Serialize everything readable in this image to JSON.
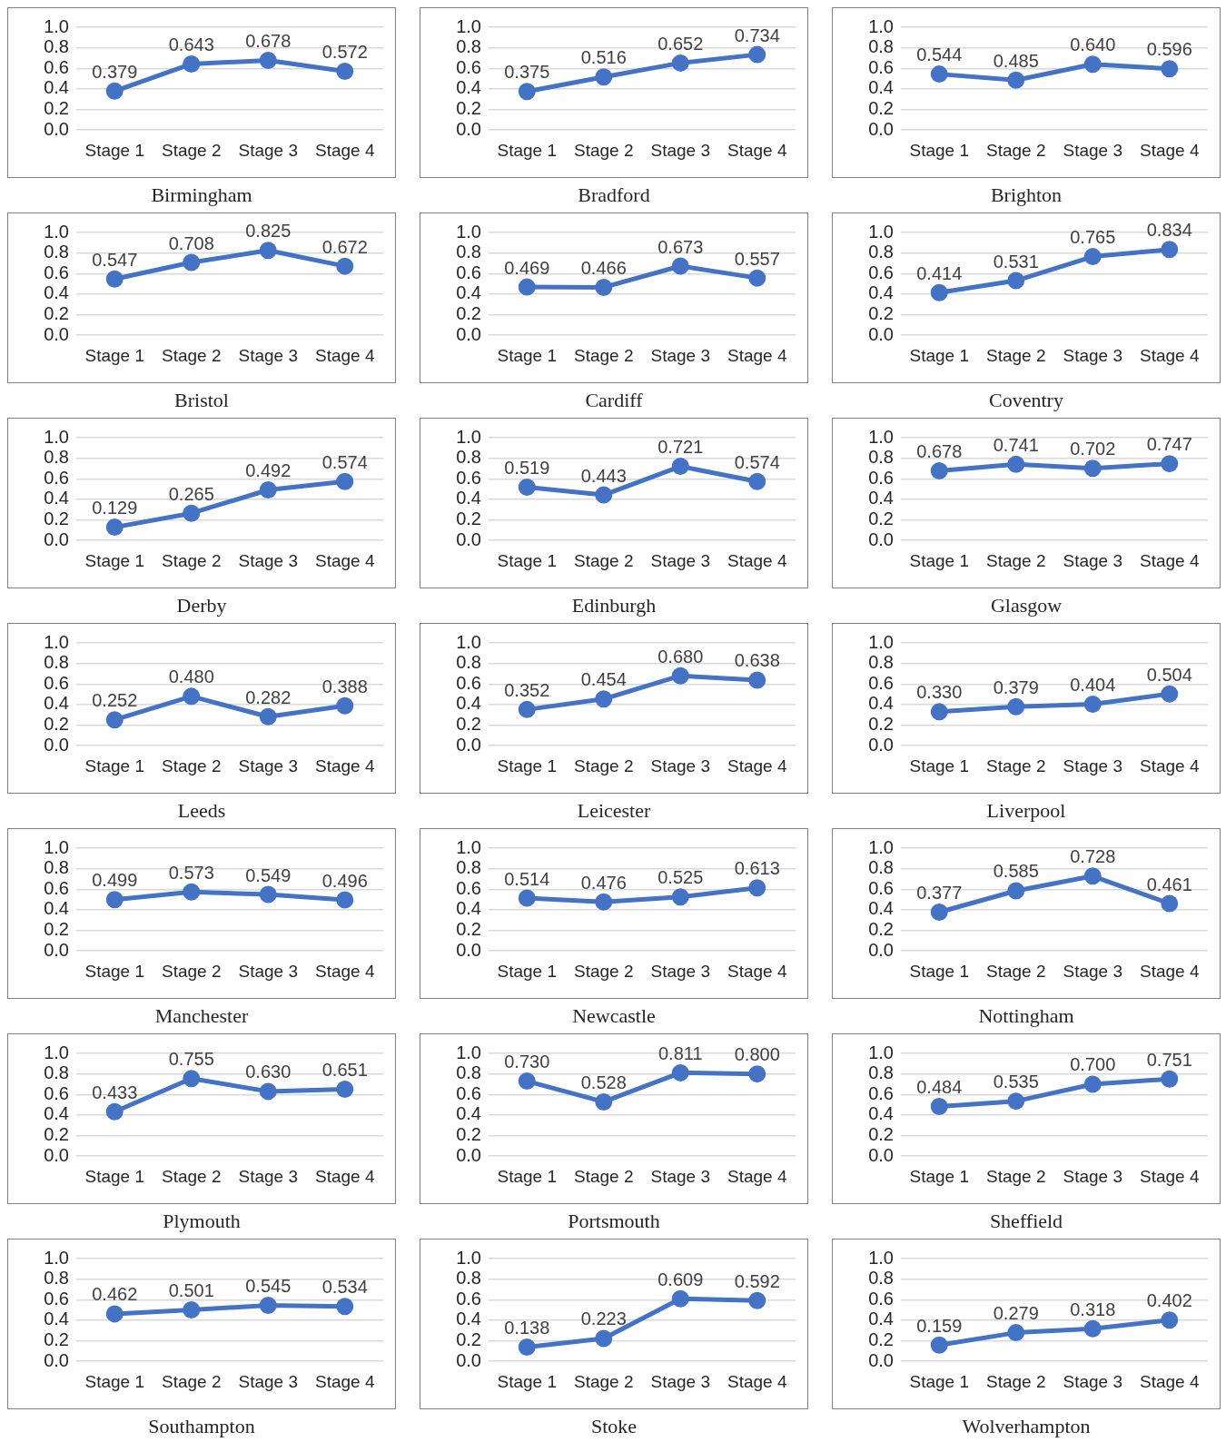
{
  "chart_data": [
    {
      "type": "line",
      "title": "Birmingham",
      "categories": [
        "Stage 1",
        "Stage 2",
        "Stage 3",
        "Stage 4"
      ],
      "values": [
        0.379,
        0.643,
        0.678,
        0.572
      ],
      "value_labels": [
        "0.379",
        "0.643",
        "0.678",
        "0.572"
      ],
      "color": "#4472c4",
      "marker": "circle",
      "grid": "y",
      "ylim": [
        0,
        1
      ],
      "yticks": [
        {
          "value": 0,
          "label": "0.0"
        },
        {
          "value": 0.2,
          "label": "0.2"
        },
        {
          "value": 0.4,
          "label": "0.4"
        },
        {
          "value": 0.6,
          "label": "0.6"
        },
        {
          "value": 0.8,
          "label": "0.8"
        },
        {
          "value": 1,
          "label": "1.0"
        }
      ]
    },
    {
      "type": "line",
      "title": "Bradford",
      "categories": [
        "Stage 1",
        "Stage 2",
        "Stage 3",
        "Stage 4"
      ],
      "values": [
        0.375,
        0.516,
        0.652,
        0.734
      ],
      "value_labels": [
        "0.375",
        "0.516",
        "0.652",
        "0.734"
      ],
      "color": "#4472c4",
      "marker": "circle",
      "grid": "y",
      "ylim": [
        0,
        1
      ],
      "yticks": [
        {
          "value": 0,
          "label": "0.0"
        },
        {
          "value": 0.2,
          "label": "0.2"
        },
        {
          "value": 0.4,
          "label": "0.4"
        },
        {
          "value": 0.6,
          "label": "0.6"
        },
        {
          "value": 0.8,
          "label": "0.8"
        },
        {
          "value": 1,
          "label": "1.0"
        }
      ]
    },
    {
      "type": "line",
      "title": "Brighton",
      "categories": [
        "Stage 1",
        "Stage 2",
        "Stage 3",
        "Stage 4"
      ],
      "values": [
        0.544,
        0.485,
        0.64,
        0.596
      ],
      "value_labels": [
        "0.544",
        "0.485",
        "0.640",
        "0.596"
      ],
      "color": "#4472c4",
      "marker": "circle",
      "grid": "y",
      "ylim": [
        0,
        1
      ],
      "yticks": [
        {
          "value": 0,
          "label": "0.0"
        },
        {
          "value": 0.2,
          "label": "0.2"
        },
        {
          "value": 0.4,
          "label": "0.4"
        },
        {
          "value": 0.6,
          "label": "0.6"
        },
        {
          "value": 0.8,
          "label": "0.8"
        },
        {
          "value": 1,
          "label": "1.0"
        }
      ]
    },
    {
      "type": "line",
      "title": "Bristol",
      "categories": [
        "Stage 1",
        "Stage 2",
        "Stage 3",
        "Stage 4"
      ],
      "values": [
        0.547,
        0.708,
        0.825,
        0.672
      ],
      "value_labels": [
        "0.547",
        "0.708",
        "0.825",
        "0.672"
      ],
      "color": "#4472c4",
      "marker": "circle",
      "grid": "y",
      "ylim": [
        0,
        1
      ],
      "yticks": [
        {
          "value": 0,
          "label": "0.0"
        },
        {
          "value": 0.2,
          "label": "0.2"
        },
        {
          "value": 0.4,
          "label": "0.4"
        },
        {
          "value": 0.6,
          "label": "0.6"
        },
        {
          "value": 0.8,
          "label": "0.8"
        },
        {
          "value": 1,
          "label": "1.0"
        }
      ]
    },
    {
      "type": "line",
      "title": "Cardiff",
      "categories": [
        "Stage 1",
        "Stage 2",
        "Stage 3",
        "Stage 4"
      ],
      "values": [
        0.469,
        0.466,
        0.673,
        0.557
      ],
      "value_labels": [
        "0.469",
        "0.466",
        "0.673",
        "0.557"
      ],
      "color": "#4472c4",
      "marker": "circle",
      "grid": "y",
      "ylim": [
        0,
        1
      ],
      "yticks": [
        {
          "value": 0,
          "label": "0.0"
        },
        {
          "value": 0.2,
          "label": "0.2"
        },
        {
          "value": 0.4,
          "label": "0.4"
        },
        {
          "value": 0.6,
          "label": "0.6"
        },
        {
          "value": 0.8,
          "label": "0.8"
        },
        {
          "value": 1,
          "label": "1.0"
        }
      ]
    },
    {
      "type": "line",
      "title": "Coventry",
      "categories": [
        "Stage 1",
        "Stage 2",
        "Stage 3",
        "Stage 4"
      ],
      "values": [
        0.414,
        0.531,
        0.765,
        0.834
      ],
      "value_labels": [
        "0.414",
        "0.531",
        "0.765",
        "0.834"
      ],
      "color": "#4472c4",
      "marker": "circle",
      "grid": "y",
      "ylim": [
        0,
        1
      ],
      "yticks": [
        {
          "value": 0,
          "label": "0.0"
        },
        {
          "value": 0.2,
          "label": "0.2"
        },
        {
          "value": 0.4,
          "label": "0.4"
        },
        {
          "value": 0.6,
          "label": "0.6"
        },
        {
          "value": 0.8,
          "label": "0.8"
        },
        {
          "value": 1,
          "label": "1.0"
        }
      ]
    },
    {
      "type": "line",
      "title": "Derby",
      "categories": [
        "Stage 1",
        "Stage 2",
        "Stage 3",
        "Stage 4"
      ],
      "values": [
        0.129,
        0.265,
        0.492,
        0.574
      ],
      "value_labels": [
        "0.129",
        "0.265",
        "0.492",
        "0.574"
      ],
      "color": "#4472c4",
      "marker": "circle",
      "grid": "y",
      "ylim": [
        0,
        1
      ],
      "yticks": [
        {
          "value": 0,
          "label": "0.0"
        },
        {
          "value": 0.2,
          "label": "0.2"
        },
        {
          "value": 0.4,
          "label": "0.4"
        },
        {
          "value": 0.6,
          "label": "0.6"
        },
        {
          "value": 0.8,
          "label": "0.8"
        },
        {
          "value": 1,
          "label": "1.0"
        }
      ]
    },
    {
      "type": "line",
      "title": "Edinburgh",
      "categories": [
        "Stage 1",
        "Stage 2",
        "Stage 3",
        "Stage 4"
      ],
      "values": [
        0.519,
        0.443,
        0.721,
        0.574
      ],
      "value_labels": [
        "0.519",
        "0.443",
        "0.721",
        "0.574"
      ],
      "color": "#4472c4",
      "marker": "circle",
      "grid": "y",
      "ylim": [
        0,
        1
      ],
      "yticks": [
        {
          "value": 0,
          "label": "0.0"
        },
        {
          "value": 0.2,
          "label": "0.2"
        },
        {
          "value": 0.4,
          "label": "0.4"
        },
        {
          "value": 0.6,
          "label": "0.6"
        },
        {
          "value": 0.8,
          "label": "0.8"
        },
        {
          "value": 1,
          "label": "1.0"
        }
      ]
    },
    {
      "type": "line",
      "title": "Glasgow",
      "categories": [
        "Stage 1",
        "Stage 2",
        "Stage 3",
        "Stage 4"
      ],
      "values": [
        0.678,
        0.741,
        0.702,
        0.747
      ],
      "value_labels": [
        "0.678",
        "0.741",
        "0.702",
        "0.747"
      ],
      "color": "#4472c4",
      "marker": "circle",
      "grid": "y",
      "ylim": [
        0,
        1
      ],
      "yticks": [
        {
          "value": 0,
          "label": "0.0"
        },
        {
          "value": 0.2,
          "label": "0.2"
        },
        {
          "value": 0.4,
          "label": "0.4"
        },
        {
          "value": 0.6,
          "label": "0.6"
        },
        {
          "value": 0.8,
          "label": "0.8"
        },
        {
          "value": 1,
          "label": "1.0"
        }
      ]
    },
    {
      "type": "line",
      "title": "Leeds",
      "categories": [
        "Stage 1",
        "Stage 2",
        "Stage 3",
        "Stage 4"
      ],
      "values": [
        0.252,
        0.48,
        0.282,
        0.388
      ],
      "value_labels": [
        "0.252",
        "0.480",
        "0.282",
        "0.388"
      ],
      "color": "#4472c4",
      "marker": "circle",
      "grid": "y",
      "ylim": [
        0,
        1
      ],
      "yticks": [
        {
          "value": 0,
          "label": "0.0"
        },
        {
          "value": 0.2,
          "label": "0.2"
        },
        {
          "value": 0.4,
          "label": "0.4"
        },
        {
          "value": 0.6,
          "label": "0.6"
        },
        {
          "value": 0.8,
          "label": "0.8"
        },
        {
          "value": 1,
          "label": "1.0"
        }
      ]
    },
    {
      "type": "line",
      "title": "Leicester",
      "categories": [
        "Stage 1",
        "Stage 2",
        "Stage 3",
        "Stage 4"
      ],
      "values": [
        0.352,
        0.454,
        0.68,
        0.638
      ],
      "value_labels": [
        "0.352",
        "0.454",
        "0.680",
        "0.638"
      ],
      "color": "#4472c4",
      "marker": "circle",
      "grid": "y",
      "ylim": [
        0,
        1
      ],
      "yticks": [
        {
          "value": 0,
          "label": "0.0"
        },
        {
          "value": 0.2,
          "label": "0.2"
        },
        {
          "value": 0.4,
          "label": "0.4"
        },
        {
          "value": 0.6,
          "label": "0.6"
        },
        {
          "value": 0.8,
          "label": "0.8"
        },
        {
          "value": 1,
          "label": "1.0"
        }
      ]
    },
    {
      "type": "line",
      "title": "Liverpool",
      "categories": [
        "Stage 1",
        "Stage 2",
        "Stage 3",
        "Stage 4"
      ],
      "values": [
        0.33,
        0.379,
        0.404,
        0.504
      ],
      "value_labels": [
        "0.330",
        "0.379",
        "0.404",
        "0.504"
      ],
      "color": "#4472c4",
      "marker": "circle",
      "grid": "y",
      "ylim": [
        0,
        1
      ],
      "yticks": [
        {
          "value": 0,
          "label": "0.0"
        },
        {
          "value": 0.2,
          "label": "0.2"
        },
        {
          "value": 0.4,
          "label": "0.4"
        },
        {
          "value": 0.6,
          "label": "0.6"
        },
        {
          "value": 0.8,
          "label": "0.8"
        },
        {
          "value": 1,
          "label": "1.0"
        }
      ]
    },
    {
      "type": "line",
      "title": "Manchester",
      "categories": [
        "Stage 1",
        "Stage 2",
        "Stage 3",
        "Stage 4"
      ],
      "values": [
        0.499,
        0.573,
        0.549,
        0.496
      ],
      "value_labels": [
        "0.499",
        "0.573",
        "0.549",
        "0.496"
      ],
      "color": "#4472c4",
      "marker": "circle",
      "grid": "y",
      "ylim": [
        0,
        1
      ],
      "yticks": [
        {
          "value": 0,
          "label": "0.0"
        },
        {
          "value": 0.2,
          "label": "0.2"
        },
        {
          "value": 0.4,
          "label": "0.4"
        },
        {
          "value": 0.6,
          "label": "0.6"
        },
        {
          "value": 0.8,
          "label": "0.8"
        },
        {
          "value": 1,
          "label": "1.0"
        }
      ]
    },
    {
      "type": "line",
      "title": "Newcastle",
      "categories": [
        "Stage 1",
        "Stage 2",
        "Stage 3",
        "Stage 4"
      ],
      "values": [
        0.514,
        0.476,
        0.525,
        0.613
      ],
      "value_labels": [
        "0.514",
        "0.476",
        "0.525",
        "0.613"
      ],
      "color": "#4472c4",
      "marker": "circle",
      "grid": "y",
      "ylim": [
        0,
        1
      ],
      "yticks": [
        {
          "value": 0,
          "label": "0.0"
        },
        {
          "value": 0.2,
          "label": "0.2"
        },
        {
          "value": 0.4,
          "label": "0.4"
        },
        {
          "value": 0.6,
          "label": "0.6"
        },
        {
          "value": 0.8,
          "label": "0.8"
        },
        {
          "value": 1,
          "label": "1.0"
        }
      ]
    },
    {
      "type": "line",
      "title": "Nottingham",
      "categories": [
        "Stage 1",
        "Stage 2",
        "Stage 3",
        "Stage 4"
      ],
      "values": [
        0.377,
        0.585,
        0.728,
        0.461
      ],
      "value_labels": [
        "0.377",
        "0.585",
        "0.728",
        "0.461"
      ],
      "color": "#4472c4",
      "marker": "circle",
      "grid": "y",
      "ylim": [
        0,
        1
      ],
      "yticks": [
        {
          "value": 0,
          "label": "0.0"
        },
        {
          "value": 0.2,
          "label": "0.2"
        },
        {
          "value": 0.4,
          "label": "0.4"
        },
        {
          "value": 0.6,
          "label": "0.6"
        },
        {
          "value": 0.8,
          "label": "0.8"
        },
        {
          "value": 1,
          "label": "1.0"
        }
      ]
    },
    {
      "type": "line",
      "title": "Plymouth",
      "categories": [
        "Stage 1",
        "Stage 2",
        "Stage 3",
        "Stage 4"
      ],
      "values": [
        0.433,
        0.755,
        0.63,
        0.651
      ],
      "value_labels": [
        "0.433",
        "0.755",
        "0.630",
        "0.651"
      ],
      "color": "#4472c4",
      "marker": "circle",
      "grid": "y",
      "ylim": [
        0,
        1
      ],
      "yticks": [
        {
          "value": 0,
          "label": "0.0"
        },
        {
          "value": 0.2,
          "label": "0.2"
        },
        {
          "value": 0.4,
          "label": "0.4"
        },
        {
          "value": 0.6,
          "label": "0.6"
        },
        {
          "value": 0.8,
          "label": "0.8"
        },
        {
          "value": 1,
          "label": "1.0"
        }
      ]
    },
    {
      "type": "line",
      "title": "Portsmouth",
      "categories": [
        "Stage 1",
        "Stage 2",
        "Stage 3",
        "Stage 4"
      ],
      "values": [
        0.73,
        0.528,
        0.811,
        0.8
      ],
      "value_labels": [
        "0.730",
        "0.528",
        "0.811",
        "0.800"
      ],
      "color": "#4472c4",
      "marker": "circle",
      "grid": "y",
      "ylim": [
        0,
        1
      ],
      "yticks": [
        {
          "value": 0,
          "label": "0.0"
        },
        {
          "value": 0.2,
          "label": "0.2"
        },
        {
          "value": 0.4,
          "label": "0.4"
        },
        {
          "value": 0.6,
          "label": "0.6"
        },
        {
          "value": 0.8,
          "label": "0.8"
        },
        {
          "value": 1,
          "label": "1.0"
        }
      ]
    },
    {
      "type": "line",
      "title": "Sheffield",
      "categories": [
        "Stage 1",
        "Stage 2",
        "Stage 3",
        "Stage 4"
      ],
      "values": [
        0.484,
        0.535,
        0.7,
        0.751
      ],
      "value_labels": [
        "0.484",
        "0.535",
        "0.700",
        "0.751"
      ],
      "color": "#4472c4",
      "marker": "circle",
      "grid": "y",
      "ylim": [
        0,
        1
      ],
      "yticks": [
        {
          "value": 0,
          "label": "0.0"
        },
        {
          "value": 0.2,
          "label": "0.2"
        },
        {
          "value": 0.4,
          "label": "0.4"
        },
        {
          "value": 0.6,
          "label": "0.6"
        },
        {
          "value": 0.8,
          "label": "0.8"
        },
        {
          "value": 1,
          "label": "1.0"
        }
      ]
    },
    {
      "type": "line",
      "title": "Southampton",
      "categories": [
        "Stage 1",
        "Stage 2",
        "Stage 3",
        "Stage 4"
      ],
      "values": [
        0.462,
        0.501,
        0.545,
        0.534
      ],
      "value_labels": [
        "0.462",
        "0.501",
        "0.545",
        "0.534"
      ],
      "color": "#4472c4",
      "marker": "circle",
      "grid": "y",
      "ylim": [
        0,
        1
      ],
      "yticks": [
        {
          "value": 0,
          "label": "0.0"
        },
        {
          "value": 0.2,
          "label": "0.2"
        },
        {
          "value": 0.4,
          "label": "0.4"
        },
        {
          "value": 0.6,
          "label": "0.6"
        },
        {
          "value": 0.8,
          "label": "0.8"
        },
        {
          "value": 1,
          "label": "1.0"
        }
      ]
    },
    {
      "type": "line",
      "title": "Stoke",
      "categories": [
        "Stage 1",
        "Stage 2",
        "Stage 3",
        "Stage 4"
      ],
      "values": [
        0.138,
        0.223,
        0.609,
        0.592
      ],
      "value_labels": [
        "0.138",
        "0.223",
        "0.609",
        "0.592"
      ],
      "color": "#4472c4",
      "marker": "circle",
      "grid": "y",
      "ylim": [
        0,
        1
      ],
      "yticks": [
        {
          "value": 0,
          "label": "0.0"
        },
        {
          "value": 0.2,
          "label": "0.2"
        },
        {
          "value": 0.4,
          "label": "0.4"
        },
        {
          "value": 0.6,
          "label": "0.6"
        },
        {
          "value": 0.8,
          "label": "0.8"
        },
        {
          "value": 1,
          "label": "1.0"
        }
      ]
    },
    {
      "type": "line",
      "title": "Wolverhampton",
      "categories": [
        "Stage 1",
        "Stage 2",
        "Stage 3",
        "Stage 4"
      ],
      "values": [
        0.159,
        0.279,
        0.318,
        0.402
      ],
      "value_labels": [
        "0.159",
        "0.279",
        "0.318",
        "0.402"
      ],
      "color": "#4472c4",
      "marker": "circle",
      "grid": "y",
      "ylim": [
        0,
        1
      ],
      "yticks": [
        {
          "value": 0,
          "label": "0.0"
        },
        {
          "value": 0.2,
          "label": "0.2"
        },
        {
          "value": 0.4,
          "label": "0.4"
        },
        {
          "value": 0.6,
          "label": "0.6"
        },
        {
          "value": 0.8,
          "label": "0.8"
        },
        {
          "value": 1,
          "label": "1.0"
        }
      ]
    }
  ]
}
